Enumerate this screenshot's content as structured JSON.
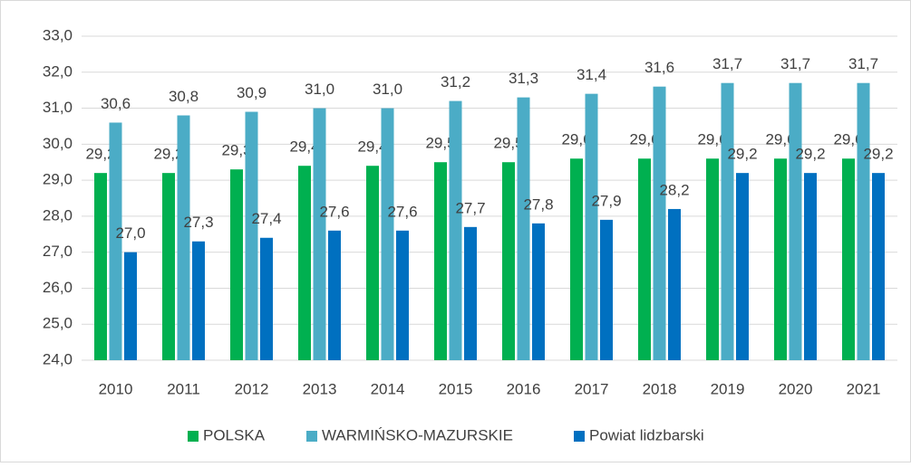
{
  "chart_data": {
    "type": "bar",
    "categories": [
      "2010",
      "2011",
      "2012",
      "2013",
      "2014",
      "2015",
      "2016",
      "2017",
      "2018",
      "2019",
      "2020",
      "2021"
    ],
    "series": [
      {
        "name": "POLSKA",
        "color": "#00b050",
        "values": [
          29.2,
          29.2,
          29.3,
          29.4,
          29.4,
          29.5,
          29.5,
          29.6,
          29.6,
          29.6,
          29.6,
          29.6
        ],
        "value_labels": [
          "29,2",
          "29,2",
          "29,3",
          "29,4",
          "29,4",
          "29,5",
          "29,5",
          "29,6",
          "29,6",
          "29,6",
          "29,6",
          "29,6"
        ]
      },
      {
        "name": "WARMIŃSKO-MAZURSKIE",
        "color": "#4bacc6",
        "values": [
          30.6,
          30.8,
          30.9,
          31.0,
          31.0,
          31.2,
          31.3,
          31.4,
          31.6,
          31.7,
          31.7,
          31.7
        ],
        "value_labels": [
          "30,6",
          "30,8",
          "30,9",
          "31,0",
          "31,0",
          "31,2",
          "31,3",
          "31,4",
          "31,6",
          "31,7",
          "31,7",
          "31,7"
        ]
      },
      {
        "name": "Powiat lidzbarski",
        "color": "#0070c0",
        "values": [
          27.0,
          27.3,
          27.4,
          27.6,
          27.6,
          27.7,
          27.8,
          27.9,
          28.2,
          29.2,
          29.2,
          29.2
        ],
        "value_labels": [
          "27,0",
          "27,3",
          "27,4",
          "27,6",
          "27,6",
          "27,7",
          "27,8",
          "27,9",
          "28,2",
          "29,2",
          "29,2",
          "29,2"
        ]
      }
    ],
    "ylim": [
      24,
      33
    ],
    "yticks": [
      {
        "value": 24,
        "label": "24,0"
      },
      {
        "value": 25,
        "label": "25,0"
      },
      {
        "value": 26,
        "label": "26,0"
      },
      {
        "value": 27,
        "label": "27,0"
      },
      {
        "value": 28,
        "label": "28,0"
      },
      {
        "value": 29,
        "label": "29,0"
      },
      {
        "value": 30,
        "label": "30,0"
      },
      {
        "value": 31,
        "label": "31,0"
      },
      {
        "value": 32,
        "label": "32,0"
      },
      {
        "value": 33,
        "label": "33,0"
      }
    ],
    "grid": true,
    "legend": "bottom"
  }
}
